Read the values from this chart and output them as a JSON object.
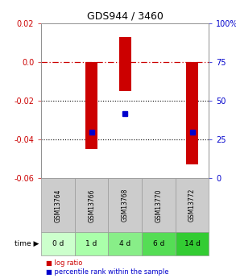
{
  "title": "GDS944 / 3460",
  "samples": [
    "GSM13764",
    "GSM13766",
    "GSM13768",
    "GSM13770",
    "GSM13772"
  ],
  "time_labels": [
    "0 d",
    "1 d",
    "4 d",
    "6 d",
    "14 d"
  ],
  "time_colors": [
    "#ccffcc",
    "#aaffaa",
    "#88ee88",
    "#55dd55",
    "#33cc33"
  ],
  "log_ratio_top": [
    0.0,
    0.0,
    0.013,
    0.0,
    0.0
  ],
  "log_ratio_bottom": [
    0.0,
    -0.045,
    -0.015,
    0.0,
    -0.053
  ],
  "percentile_vals": [
    null,
    30,
    42,
    null,
    30
  ],
  "ylim_left": [
    -0.06,
    0.02
  ],
  "ylim_right": [
    0,
    100
  ],
  "yticks_left": [
    0.02,
    0.0,
    -0.02,
    -0.04,
    -0.06
  ],
  "yticks_right": [
    100,
    75,
    50,
    25,
    0
  ],
  "bar_color": "#cc0000",
  "dot_color": "#0000cc",
  "legend_bar_label": "log ratio",
  "legend_dot_label": "percentile rank within the sample",
  "zero_line_color": "#cc0000",
  "grid_color": "#000000",
  "header_bg": "#cccccc",
  "bar_width": 0.35
}
